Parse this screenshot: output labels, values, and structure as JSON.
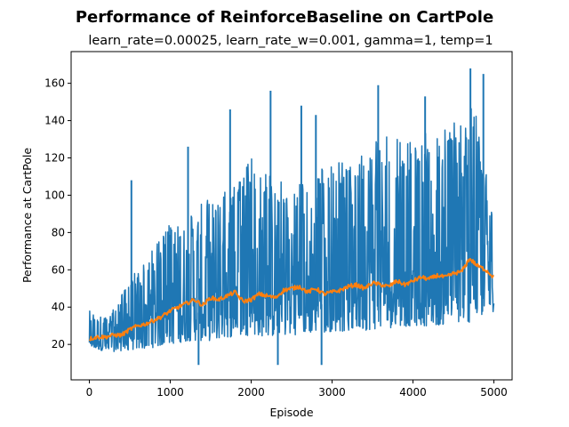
{
  "chart_data": {
    "type": "line",
    "title": "Performance of ReinforceBaseline on CartPole",
    "subtitle": "learn_rate=0.00025, learn_rate_w=0.001, gamma=1, temp=1",
    "xlabel": "Episode",
    "ylabel": "Performance at CartPole",
    "xlim": [
      -225,
      5225
    ],
    "ylim": [
      1,
      177
    ],
    "xticks": [
      0,
      1000,
      2000,
      3000,
      4000,
      5000
    ],
    "yticks": [
      20,
      40,
      60,
      80,
      100,
      120,
      140,
      160
    ],
    "grid": false,
    "legend": "none",
    "series": [
      {
        "color": "#1f77b4",
        "style": "raw per-episode performance (noisy band)",
        "x": [
          0,
          250,
          500,
          750,
          1000,
          1250,
          1500,
          1750,
          2000,
          2250,
          2500,
          2750,
          3000,
          3250,
          3500,
          3750,
          4000,
          4250,
          4500,
          4750,
          5000
        ],
        "low": [
          18,
          16,
          17,
          18,
          20,
          22,
          22,
          24,
          25,
          24,
          25,
          26,
          27,
          27,
          28,
          29,
          30,
          30,
          31,
          32,
          37
        ],
        "high": [
          38,
          35,
          55,
          70,
          85,
          90,
          100,
          105,
          120,
          110,
          105,
          110,
          120,
          115,
          135,
          130,
          130,
          135,
          140,
          150,
          90
        ],
        "peaks": [
          {
            "x": 520,
            "y": 108
          },
          {
            "x": 1220,
            "y": 126
          },
          {
            "x": 1740,
            "y": 146
          },
          {
            "x": 2240,
            "y": 156
          },
          {
            "x": 2620,
            "y": 148
          },
          {
            "x": 2800,
            "y": 143
          },
          {
            "x": 3570,
            "y": 159
          },
          {
            "x": 4150,
            "y": 153
          },
          {
            "x": 4710,
            "y": 168
          },
          {
            "x": 4870,
            "y": 165
          }
        ],
        "dips": [
          {
            "x": 1350,
            "y": 9
          },
          {
            "x": 2330,
            "y": 9
          },
          {
            "x": 2870,
            "y": 9
          }
        ]
      },
      {
        "color": "#ff7f0e",
        "style": "moving average",
        "x": [
          0,
          100,
          200,
          300,
          400,
          500,
          600,
          700,
          800,
          900,
          1000,
          1100,
          1200,
          1300,
          1400,
          1500,
          1600,
          1700,
          1800,
          1900,
          2000,
          2100,
          2200,
          2300,
          2400,
          2500,
          2600,
          2700,
          2800,
          2900,
          3000,
          3100,
          3200,
          3300,
          3400,
          3500,
          3600,
          3700,
          3800,
          3900,
          4000,
          4100,
          4200,
          4300,
          4400,
          4500,
          4600,
          4700,
          4800,
          4900,
          5000
        ],
        "values": [
          23,
          24,
          24,
          25,
          25,
          28,
          30,
          31,
          33,
          35,
          38,
          40,
          42,
          44,
          41,
          45,
          44,
          46,
          48,
          43,
          44,
          47,
          46,
          45,
          49,
          50,
          51,
          48,
          50,
          47,
          48,
          49,
          51,
          52,
          50,
          53,
          52,
          51,
          54,
          52,
          54,
          56,
          55,
          57,
          56,
          58,
          59,
          66,
          62,
          60,
          56
        ]
      }
    ]
  }
}
